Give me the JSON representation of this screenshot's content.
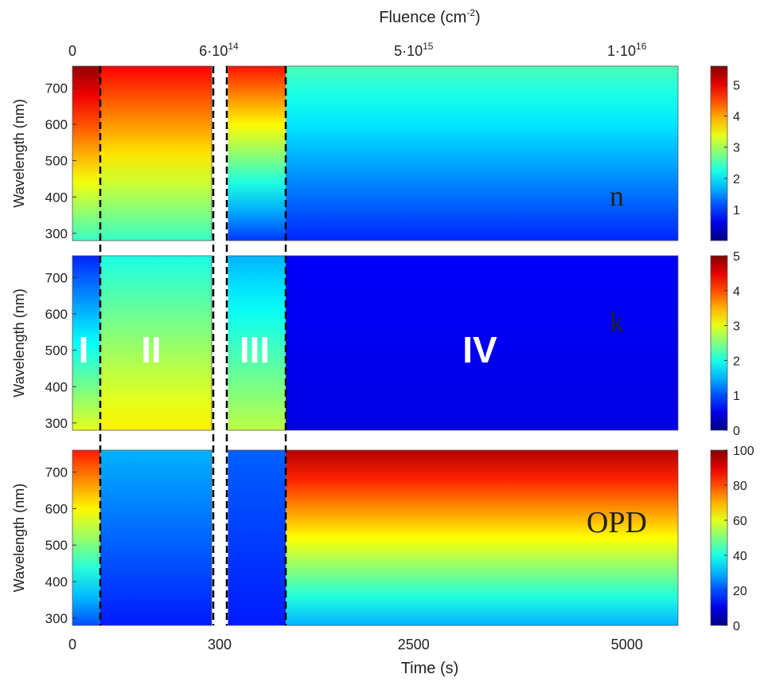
{
  "chart_data": {
    "type": "heatmap",
    "top_axis": {
      "label": "Fluence (cm",
      "label_sup": "-2",
      "label_end": ")",
      "ticks": [
        {
          "base": "0",
          "exp": "",
          "time": 0,
          "segment": 0
        },
        {
          "base": "6·10",
          "exp": "14",
          "time": 300,
          "segment": 0
        },
        {
          "base": "5·10",
          "exp": "15",
          "time": 2500,
          "segment": 1
        },
        {
          "base": "1·10",
          "exp": "16",
          "time": 5000,
          "segment": 1
        }
      ]
    },
    "x_axis": {
      "label": "Time (s)",
      "segment_1": {
        "range": [
          0,
          300
        ],
        "ticks": [
          "0",
          "300"
        ]
      },
      "segment_2": {
        "range": [
          300,
          5600
        ],
        "ticks": [
          "2500",
          "5000"
        ]
      }
    },
    "y_axis": {
      "label": "Wavelength (nm)",
      "range": [
        280,
        760
      ],
      "ticks": [
        300,
        400,
        500,
        600,
        700
      ]
    },
    "region_boundaries_time_s": [
      60,
      300,
      1000
    ],
    "regions": [
      {
        "label": "I",
        "time": 25
      },
      {
        "label": "II",
        "time": 180
      },
      {
        "label": "III",
        "time": 650
      },
      {
        "label": "IV",
        "time": 2700
      }
    ],
    "panels": [
      {
        "name": "n",
        "colorbar": {
          "min": 0,
          "max": 5.6,
          "ticks": [
            "1",
            "2",
            "3",
            "4",
            "5"
          ],
          "tick_values": [
            1,
            2,
            3,
            4,
            5
          ]
        },
        "phases": [
          {
            "region": "I",
            "value_short_wavelength": 2.4,
            "value_long_wavelength": 5.5
          },
          {
            "region": "II",
            "value_short_wavelength": 2.4,
            "value_long_wavelength": 4.9
          },
          {
            "region": "III",
            "value_short_wavelength": 1.0,
            "value_long_wavelength": 4.8
          },
          {
            "region": "IV",
            "value_short_wavelength": 0.9,
            "value_long_wavelength": 2.5
          }
        ]
      },
      {
        "name": "k",
        "colorbar": {
          "min": 0,
          "max": 5,
          "ticks": [
            "0",
            "1",
            "2",
            "3",
            "4",
            "5"
          ],
          "tick_values": [
            0,
            1,
            2,
            3,
            4,
            5
          ]
        },
        "phases": [
          {
            "region": "I",
            "value_short_wavelength": 3.0,
            "value_long_wavelength": 0.8
          },
          {
            "region": "II",
            "value_short_wavelength": 3.2,
            "value_long_wavelength": 2.0
          },
          {
            "region": "III",
            "value_short_wavelength": 2.8,
            "value_long_wavelength": 1.5
          },
          {
            "region": "IV",
            "value_short_wavelength": 0.5,
            "value_long_wavelength": 0.6
          }
        ]
      },
      {
        "name": "OPD",
        "colorbar": {
          "min": 0,
          "max": 100,
          "ticks": [
            "0",
            "20",
            "40",
            "60",
            "80",
            "100"
          ],
          "tick_values": [
            0,
            20,
            40,
            60,
            80,
            100
          ]
        },
        "phases": [
          {
            "region": "I",
            "value_short_wavelength": 20,
            "value_long_wavelength": 85
          },
          {
            "region": "II",
            "value_short_wavelength": 15,
            "value_long_wavelength": 30
          },
          {
            "region": "III",
            "value_short_wavelength": 15,
            "value_long_wavelength": 22
          },
          {
            "region": "IV",
            "value_short_wavelength": 30,
            "value_long_wavelength": 95
          }
        ]
      }
    ],
    "colormap": "jet",
    "grid": false,
    "legend": "colorbars-right"
  }
}
